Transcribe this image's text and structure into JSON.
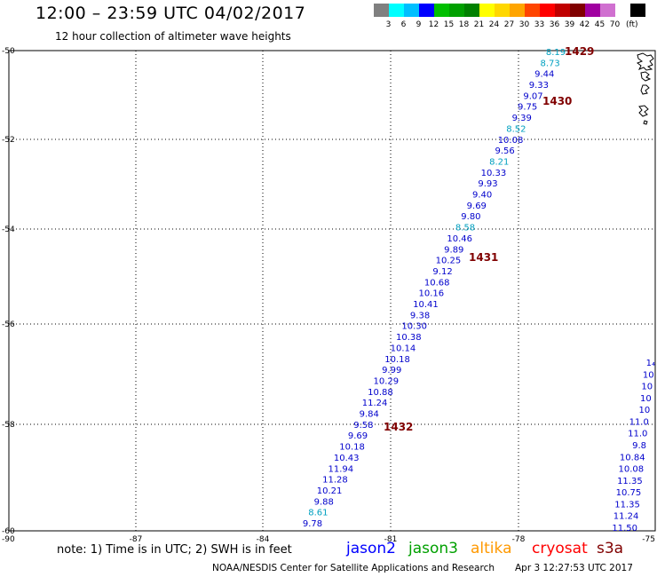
{
  "header": {
    "title": "12:00 – 23:59 UTC 04/02/2017",
    "subtitle": "12 hour collection of altimeter wave heights"
  },
  "legend": {
    "colors": [
      "#808080",
      "#00ffff",
      "#00bfff",
      "#0000ff",
      "#00bf00",
      "#00a000",
      "#008000",
      "#ffff00",
      "#ffd700",
      "#ffa500",
      "#ff4500",
      "#ff0000",
      "#c00000",
      "#800000",
      "#a000a0",
      "#d070d0",
      "#ffffff",
      "#000000"
    ],
    "ticks": [
      "3",
      "6",
      "9",
      "12",
      "15",
      "18",
      "21",
      "24",
      "27",
      "30",
      "33",
      "36",
      "39",
      "42",
      "45",
      "70"
    ],
    "unit": "(ft)"
  },
  "axes": {
    "y_ticks": [
      "-50",
      "-52",
      "-54",
      "-56",
      "-58",
      "-60"
    ],
    "x_ticks": [
      "-90",
      "-87",
      "-84",
      "-81",
      "-78",
      "-75"
    ]
  },
  "track_main": [
    {
      "v": "8.19",
      "c": "#00a0c0"
    },
    {
      "v": "8.73",
      "c": "#00a0c0"
    },
    {
      "v": "9.44",
      "c": "#0000cc"
    },
    {
      "v": "9.33",
      "c": "#0000cc"
    },
    {
      "v": "9.07",
      "c": "#0000cc"
    },
    {
      "v": "9.75",
      "c": "#0000cc"
    },
    {
      "v": "9.39",
      "c": "#0000cc"
    },
    {
      "v": "8.52",
      "c": "#00a0c0"
    },
    {
      "v": "10.08",
      "c": "#0000cc"
    },
    {
      "v": "9.56",
      "c": "#0000cc"
    },
    {
      "v": "8.21",
      "c": "#00a0c0"
    },
    {
      "v": "10.33",
      "c": "#0000cc"
    },
    {
      "v": "9.93",
      "c": "#0000cc"
    },
    {
      "v": "9.40",
      "c": "#0000cc"
    },
    {
      "v": "9.69",
      "c": "#0000cc"
    },
    {
      "v": "9.80",
      "c": "#0000cc"
    },
    {
      "v": "8.58",
      "c": "#00a0c0"
    },
    {
      "v": "10.46",
      "c": "#0000cc"
    },
    {
      "v": "9.89",
      "c": "#0000cc"
    },
    {
      "v": "10.25",
      "c": "#0000cc"
    },
    {
      "v": "9.12",
      "c": "#0000cc"
    },
    {
      "v": "10.68",
      "c": "#0000cc"
    },
    {
      "v": "10.16",
      "c": "#0000cc"
    },
    {
      "v": "10.41",
      "c": "#0000cc"
    },
    {
      "v": "9.38",
      "c": "#0000cc"
    },
    {
      "v": "10.30",
      "c": "#0000cc"
    },
    {
      "v": "10.38",
      "c": "#0000cc"
    },
    {
      "v": "10.14",
      "c": "#0000cc"
    },
    {
      "v": "10.18",
      "c": "#0000cc"
    },
    {
      "v": "9.99",
      "c": "#0000cc"
    },
    {
      "v": "10.29",
      "c": "#0000cc"
    },
    {
      "v": "10.88",
      "c": "#0000cc"
    },
    {
      "v": "11.24",
      "c": "#0000cc"
    },
    {
      "v": "9.84",
      "c": "#0000cc"
    },
    {
      "v": "9.58",
      "c": "#0000cc"
    },
    {
      "v": "9.69",
      "c": "#0000cc"
    },
    {
      "v": "10.18",
      "c": "#0000cc"
    },
    {
      "v": "10.43",
      "c": "#0000cc"
    },
    {
      "v": "11.94",
      "c": "#0000cc"
    },
    {
      "v": "11.28",
      "c": "#0000cc"
    },
    {
      "v": "10.21",
      "c": "#0000cc"
    },
    {
      "v": "9.88",
      "c": "#0000cc"
    },
    {
      "v": "8.61",
      "c": "#00a0c0"
    },
    {
      "v": "9.78",
      "c": "#0000cc"
    }
  ],
  "track_right": [
    {
      "v": "1₄",
      "c": "#0000cc"
    },
    {
      "v": "10",
      "c": "#0000cc"
    },
    {
      "v": "10",
      "c": "#0000cc"
    },
    {
      "v": "10",
      "c": "#0000cc"
    },
    {
      "v": "10",
      "c": "#0000cc"
    },
    {
      "v": "11.0",
      "c": "#0000cc"
    },
    {
      "v": "11.0",
      "c": "#0000cc"
    },
    {
      "v": "9.8",
      "c": "#0000cc"
    },
    {
      "v": "10.84",
      "c": "#0000cc"
    },
    {
      "v": "10.08",
      "c": "#0000cc"
    },
    {
      "v": "11.35",
      "c": "#0000cc"
    },
    {
      "v": "10.75",
      "c": "#0000cc"
    },
    {
      "v": "11.35",
      "c": "#0000cc"
    },
    {
      "v": "11.24",
      "c": "#0000cc"
    },
    {
      "v": "11.50",
      "c": "#0000cc"
    }
  ],
  "passes": [
    "1429",
    "1430",
    "1431",
    "1432"
  ],
  "note": "note: 1) Time is in UTC; 2) SWH is in feet",
  "satellites": [
    {
      "name": "jason2",
      "color": "#0000ff"
    },
    {
      "name": "jason3",
      "color": "#00a000"
    },
    {
      "name": "altika",
      "color": "#ff9900"
    },
    {
      "name": "cryosat",
      "color": "#ff0000"
    },
    {
      "name": "s3a",
      "color": "#800000"
    }
  ],
  "footer": {
    "org": "NOAA/NESDIS Center for Satellite Applications and Research",
    "timestamp": "Apr  3 12:27:53 UTC 2017"
  }
}
